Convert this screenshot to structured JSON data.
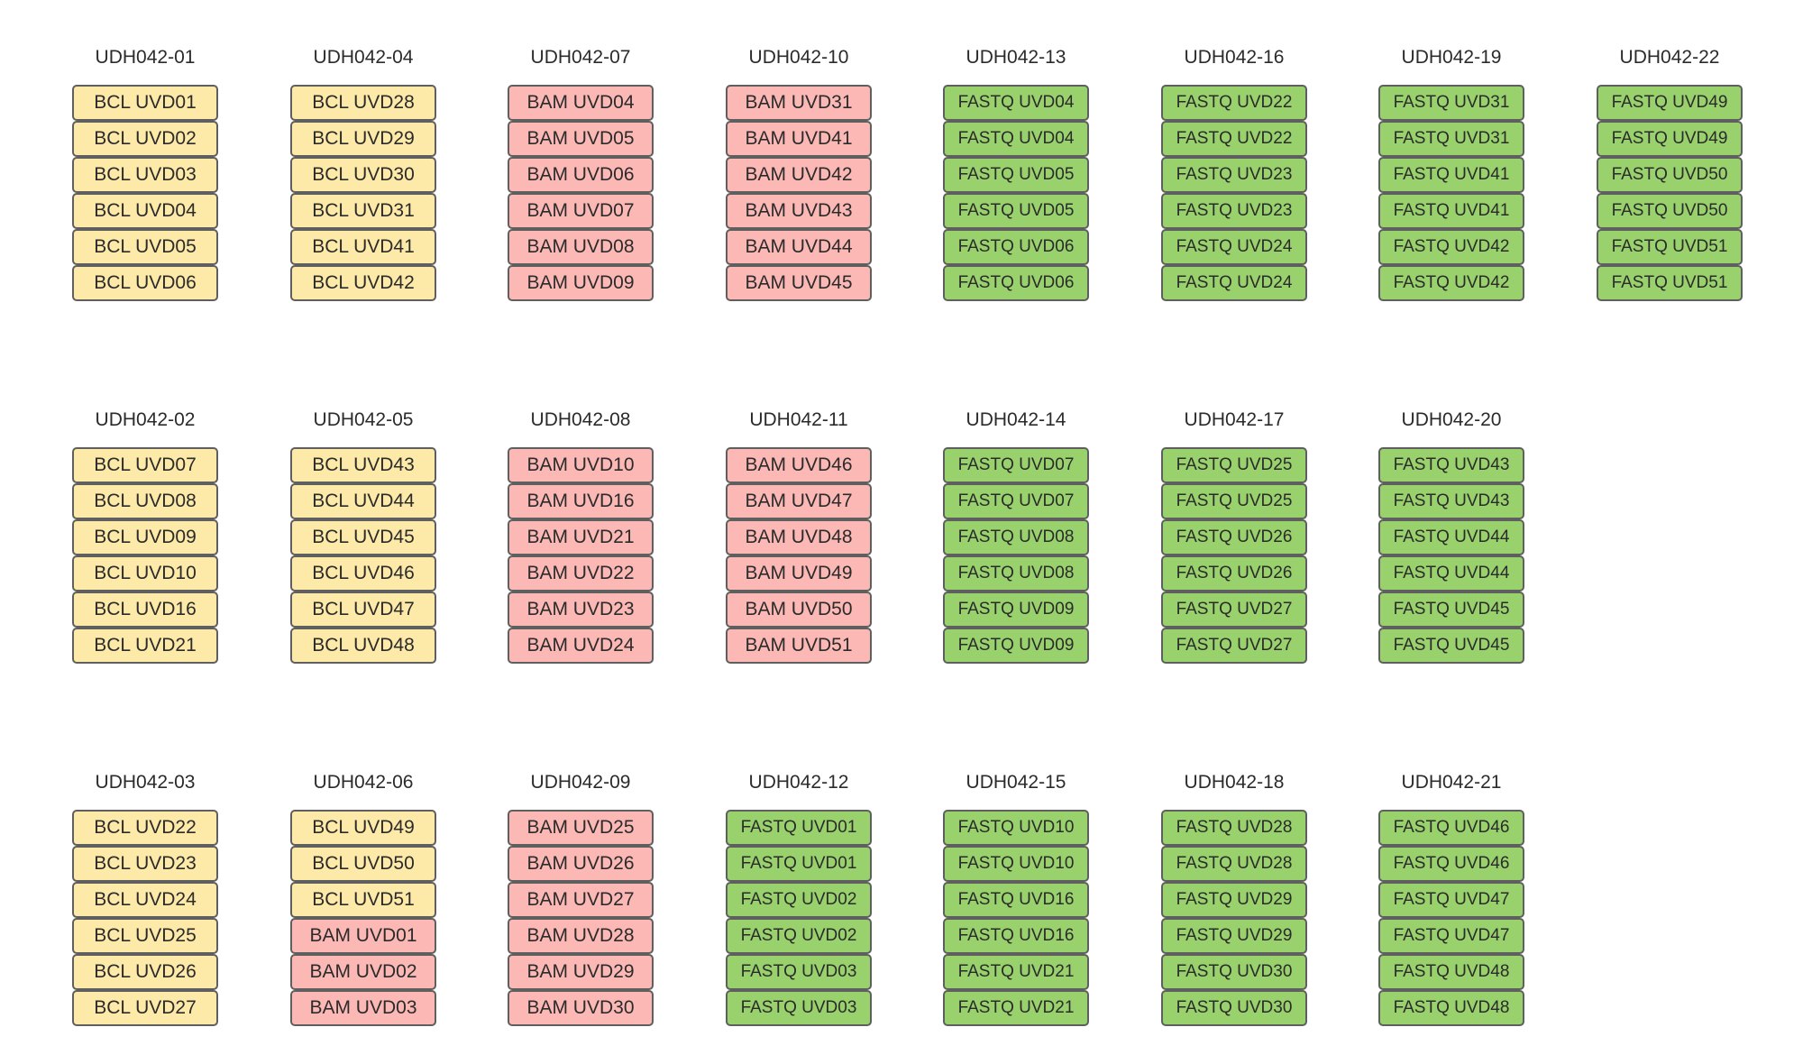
{
  "colors": {
    "BCL": "#fde9a8",
    "BAM": "#fcb8b5",
    "FASTQ": "#99d16d",
    "border": "#5f5f5f",
    "text": "#2b2b2b"
  },
  "rows": [
    [
      {
        "title": "UDH042-01",
        "items": [
          {
            "type": "BCL",
            "label": "BCL UVD01"
          },
          {
            "type": "BCL",
            "label": "BCL UVD02"
          },
          {
            "type": "BCL",
            "label": "BCL UVD03"
          },
          {
            "type": "BCL",
            "label": "BCL UVD04"
          },
          {
            "type": "BCL",
            "label": "BCL UVD05"
          },
          {
            "type": "BCL",
            "label": "BCL UVD06"
          }
        ]
      },
      {
        "title": "UDH042-04",
        "items": [
          {
            "type": "BCL",
            "label": "BCL UVD28"
          },
          {
            "type": "BCL",
            "label": "BCL UVD29"
          },
          {
            "type": "BCL",
            "label": "BCL UVD30"
          },
          {
            "type": "BCL",
            "label": "BCL UVD31"
          },
          {
            "type": "BCL",
            "label": "BCL UVD41"
          },
          {
            "type": "BCL",
            "label": "BCL UVD42"
          }
        ]
      },
      {
        "title": "UDH042-07",
        "items": [
          {
            "type": "BAM",
            "label": "BAM UVD04"
          },
          {
            "type": "BAM",
            "label": "BAM UVD05"
          },
          {
            "type": "BAM",
            "label": "BAM UVD06"
          },
          {
            "type": "BAM",
            "label": "BAM UVD07"
          },
          {
            "type": "BAM",
            "label": "BAM UVD08"
          },
          {
            "type": "BAM",
            "label": "BAM UVD09"
          }
        ]
      },
      {
        "title": "UDH042-10",
        "items": [
          {
            "type": "BAM",
            "label": "BAM UVD31"
          },
          {
            "type": "BAM",
            "label": "BAM UVD41"
          },
          {
            "type": "BAM",
            "label": "BAM UVD42"
          },
          {
            "type": "BAM",
            "label": "BAM UVD43"
          },
          {
            "type": "BAM",
            "label": "BAM UVD44"
          },
          {
            "type": "BAM",
            "label": "BAM UVD45"
          }
        ]
      },
      {
        "title": "UDH042-13",
        "items": [
          {
            "type": "FASTQ",
            "label": "FASTQ UVD04"
          },
          {
            "type": "FASTQ",
            "label": "FASTQ UVD04"
          },
          {
            "type": "FASTQ",
            "label": "FASTQ UVD05"
          },
          {
            "type": "FASTQ",
            "label": "FASTQ UVD05"
          },
          {
            "type": "FASTQ",
            "label": "FASTQ UVD06"
          },
          {
            "type": "FASTQ",
            "label": "FASTQ UVD06"
          }
        ]
      },
      {
        "title": "UDH042-16",
        "items": [
          {
            "type": "FASTQ",
            "label": "FASTQ UVD22"
          },
          {
            "type": "FASTQ",
            "label": "FASTQ UVD22"
          },
          {
            "type": "FASTQ",
            "label": "FASTQ UVD23"
          },
          {
            "type": "FASTQ",
            "label": "FASTQ UVD23"
          },
          {
            "type": "FASTQ",
            "label": "FASTQ UVD24"
          },
          {
            "type": "FASTQ",
            "label": "FASTQ UVD24"
          }
        ]
      },
      {
        "title": "UDH042-19",
        "items": [
          {
            "type": "FASTQ",
            "label": "FASTQ UVD31"
          },
          {
            "type": "FASTQ",
            "label": "FASTQ UVD31"
          },
          {
            "type": "FASTQ",
            "label": "FASTQ UVD41"
          },
          {
            "type": "FASTQ",
            "label": "FASTQ UVD41"
          },
          {
            "type": "FASTQ",
            "label": "FASTQ UVD42"
          },
          {
            "type": "FASTQ",
            "label": "FASTQ UVD42"
          }
        ]
      },
      {
        "title": "UDH042-22",
        "items": [
          {
            "type": "FASTQ",
            "label": "FASTQ UVD49"
          },
          {
            "type": "FASTQ",
            "label": "FASTQ UVD49"
          },
          {
            "type": "FASTQ",
            "label": "FASTQ UVD50"
          },
          {
            "type": "FASTQ",
            "label": "FASTQ UVD50"
          },
          {
            "type": "FASTQ",
            "label": "FASTQ UVD51"
          },
          {
            "type": "FASTQ",
            "label": "FASTQ UVD51"
          }
        ]
      }
    ],
    [
      {
        "title": "UDH042-02",
        "items": [
          {
            "type": "BCL",
            "label": "BCL UVD07"
          },
          {
            "type": "BCL",
            "label": "BCL UVD08"
          },
          {
            "type": "BCL",
            "label": "BCL UVD09"
          },
          {
            "type": "BCL",
            "label": "BCL UVD10"
          },
          {
            "type": "BCL",
            "label": "BCL UVD16"
          },
          {
            "type": "BCL",
            "label": "BCL UVD21"
          }
        ]
      },
      {
        "title": "UDH042-05",
        "items": [
          {
            "type": "BCL",
            "label": "BCL UVD43"
          },
          {
            "type": "BCL",
            "label": "BCL UVD44"
          },
          {
            "type": "BCL",
            "label": "BCL UVD45"
          },
          {
            "type": "BCL",
            "label": "BCL UVD46"
          },
          {
            "type": "BCL",
            "label": "BCL UVD47"
          },
          {
            "type": "BCL",
            "label": "BCL UVD48"
          }
        ]
      },
      {
        "title": "UDH042-08",
        "items": [
          {
            "type": "BAM",
            "label": "BAM UVD10"
          },
          {
            "type": "BAM",
            "label": "BAM UVD16"
          },
          {
            "type": "BAM",
            "label": "BAM UVD21"
          },
          {
            "type": "BAM",
            "label": "BAM UVD22"
          },
          {
            "type": "BAM",
            "label": "BAM UVD23"
          },
          {
            "type": "BAM",
            "label": "BAM UVD24"
          }
        ]
      },
      {
        "title": "UDH042-11",
        "items": [
          {
            "type": "BAM",
            "label": "BAM UVD46"
          },
          {
            "type": "BAM",
            "label": "BAM UVD47"
          },
          {
            "type": "BAM",
            "label": "BAM UVD48"
          },
          {
            "type": "BAM",
            "label": "BAM UVD49"
          },
          {
            "type": "BAM",
            "label": "BAM UVD50"
          },
          {
            "type": "BAM",
            "label": "BAM UVD51"
          }
        ]
      },
      {
        "title": "UDH042-14",
        "items": [
          {
            "type": "FASTQ",
            "label": "FASTQ UVD07"
          },
          {
            "type": "FASTQ",
            "label": "FASTQ UVD07"
          },
          {
            "type": "FASTQ",
            "label": "FASTQ UVD08"
          },
          {
            "type": "FASTQ",
            "label": "FASTQ UVD08"
          },
          {
            "type": "FASTQ",
            "label": "FASTQ UVD09"
          },
          {
            "type": "FASTQ",
            "label": "FASTQ UVD09"
          }
        ]
      },
      {
        "title": "UDH042-17",
        "items": [
          {
            "type": "FASTQ",
            "label": "FASTQ UVD25"
          },
          {
            "type": "FASTQ",
            "label": "FASTQ UVD25"
          },
          {
            "type": "FASTQ",
            "label": "FASTQ UVD26"
          },
          {
            "type": "FASTQ",
            "label": "FASTQ UVD26"
          },
          {
            "type": "FASTQ",
            "label": "FASTQ UVD27"
          },
          {
            "type": "FASTQ",
            "label": "FASTQ UVD27"
          }
        ]
      },
      {
        "title": "UDH042-20",
        "items": [
          {
            "type": "FASTQ",
            "label": "FASTQ UVD43"
          },
          {
            "type": "FASTQ",
            "label": "FASTQ UVD43"
          },
          {
            "type": "FASTQ",
            "label": "FASTQ UVD44"
          },
          {
            "type": "FASTQ",
            "label": "FASTQ UVD44"
          },
          {
            "type": "FASTQ",
            "label": "FASTQ UVD45"
          },
          {
            "type": "FASTQ",
            "label": "FASTQ UVD45"
          }
        ]
      }
    ],
    [
      {
        "title": "UDH042-03",
        "items": [
          {
            "type": "BCL",
            "label": "BCL UVD22"
          },
          {
            "type": "BCL",
            "label": "BCL UVD23"
          },
          {
            "type": "BCL",
            "label": "BCL UVD24"
          },
          {
            "type": "BCL",
            "label": "BCL UVD25"
          },
          {
            "type": "BCL",
            "label": "BCL UVD26"
          },
          {
            "type": "BCL",
            "label": "BCL UVD27"
          }
        ]
      },
      {
        "title": "UDH042-06",
        "items": [
          {
            "type": "BCL",
            "label": "BCL UVD49"
          },
          {
            "type": "BCL",
            "label": "BCL UVD50"
          },
          {
            "type": "BCL",
            "label": "BCL UVD51"
          },
          {
            "type": "BAM",
            "label": "BAM UVD01"
          },
          {
            "type": "BAM",
            "label": "BAM UVD02"
          },
          {
            "type": "BAM",
            "label": "BAM UVD03"
          }
        ]
      },
      {
        "title": "UDH042-09",
        "items": [
          {
            "type": "BAM",
            "label": "BAM UVD25"
          },
          {
            "type": "BAM",
            "label": "BAM UVD26"
          },
          {
            "type": "BAM",
            "label": "BAM UVD27"
          },
          {
            "type": "BAM",
            "label": "BAM UVD28"
          },
          {
            "type": "BAM",
            "label": "BAM UVD29"
          },
          {
            "type": "BAM",
            "label": "BAM UVD30"
          }
        ]
      },
      {
        "title": "UDH042-12",
        "items": [
          {
            "type": "FASTQ",
            "label": "FASTQ UVD01"
          },
          {
            "type": "FASTQ",
            "label": "FASTQ UVD01"
          },
          {
            "type": "FASTQ",
            "label": "FASTQ UVD02"
          },
          {
            "type": "FASTQ",
            "label": "FASTQ UVD02"
          },
          {
            "type": "FASTQ",
            "label": "FASTQ UVD03"
          },
          {
            "type": "FASTQ",
            "label": "FASTQ UVD03"
          }
        ]
      },
      {
        "title": "UDH042-15",
        "items": [
          {
            "type": "FASTQ",
            "label": "FASTQ UVD10"
          },
          {
            "type": "FASTQ",
            "label": "FASTQ UVD10"
          },
          {
            "type": "FASTQ",
            "label": "FASTQ UVD16"
          },
          {
            "type": "FASTQ",
            "label": "FASTQ UVD16"
          },
          {
            "type": "FASTQ",
            "label": "FASTQ UVD21"
          },
          {
            "type": "FASTQ",
            "label": "FASTQ UVD21"
          }
        ]
      },
      {
        "title": "UDH042-18",
        "items": [
          {
            "type": "FASTQ",
            "label": "FASTQ UVD28"
          },
          {
            "type": "FASTQ",
            "label": "FASTQ UVD28"
          },
          {
            "type": "FASTQ",
            "label": "FASTQ UVD29"
          },
          {
            "type": "FASTQ",
            "label": "FASTQ UVD29"
          },
          {
            "type": "FASTQ",
            "label": "FASTQ UVD30"
          },
          {
            "type": "FASTQ",
            "label": "FASTQ UVD30"
          }
        ]
      },
      {
        "title": "UDH042-21",
        "items": [
          {
            "type": "FASTQ",
            "label": "FASTQ UVD46"
          },
          {
            "type": "FASTQ",
            "label": "FASTQ UVD46"
          },
          {
            "type": "FASTQ",
            "label": "FASTQ UVD47"
          },
          {
            "type": "FASTQ",
            "label": "FASTQ UVD47"
          },
          {
            "type": "FASTQ",
            "label": "FASTQ UVD48"
          },
          {
            "type": "FASTQ",
            "label": "FASTQ UVD48"
          }
        ]
      }
    ]
  ]
}
